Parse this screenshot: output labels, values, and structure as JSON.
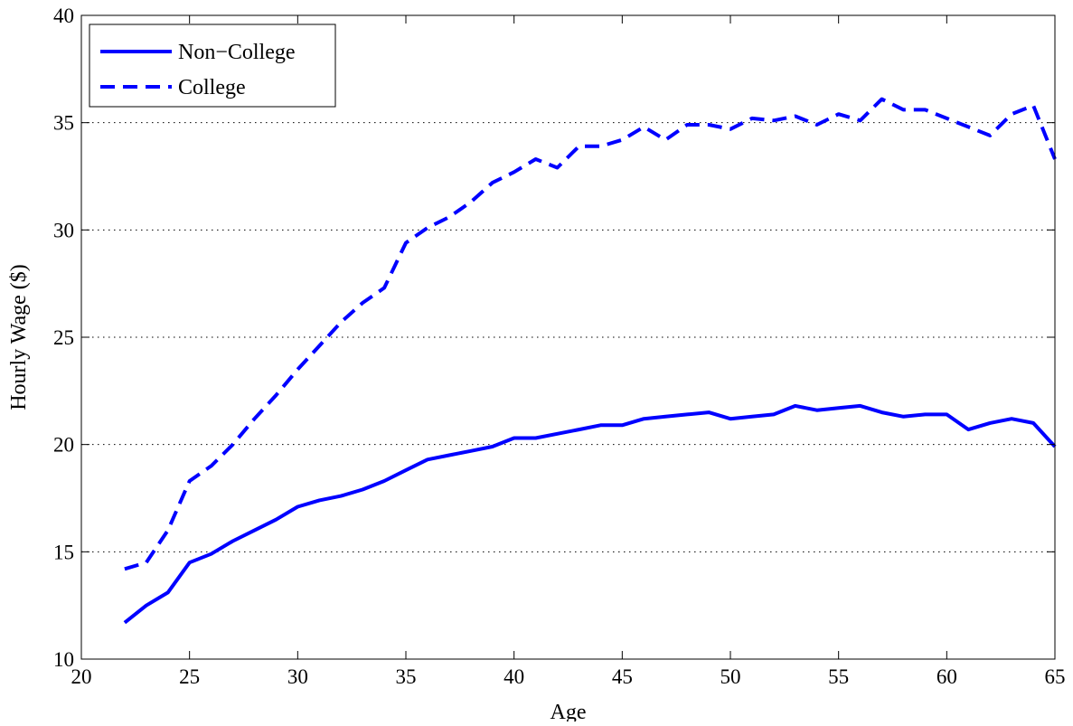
{
  "chart_data": {
    "type": "line",
    "xlabel": "Age",
    "ylabel": "Hourly Wage ($)",
    "xlim": [
      20,
      65
    ],
    "ylim": [
      10,
      40
    ],
    "xticks": [
      20,
      25,
      30,
      35,
      40,
      45,
      50,
      55,
      60,
      65
    ],
    "yticks": [
      10,
      15,
      20,
      25,
      30,
      35,
      40
    ],
    "grid": "horizontal dotted",
    "legend_position": "top-left",
    "x": [
      22,
      23,
      24,
      25,
      26,
      27,
      28,
      29,
      30,
      31,
      32,
      33,
      34,
      35,
      36,
      37,
      38,
      39,
      40,
      41,
      42,
      43,
      44,
      45,
      46,
      47,
      48,
      49,
      50,
      51,
      52,
      53,
      54,
      55,
      56,
      57,
      58,
      59,
      60,
      61,
      62,
      63,
      64,
      65
    ],
    "series": [
      {
        "name": "Non−College",
        "color": "#0000ff",
        "style": "solid",
        "values": [
          11.7,
          12.5,
          13.1,
          14.5,
          14.9,
          15.5,
          16.0,
          16.5,
          17.1,
          17.4,
          17.6,
          17.9,
          18.3,
          18.8,
          19.3,
          19.5,
          19.7,
          19.9,
          20.3,
          20.3,
          20.5,
          20.7,
          20.9,
          20.9,
          21.2,
          21.3,
          21.4,
          21.5,
          21.2,
          21.3,
          21.4,
          21.8,
          21.6,
          21.7,
          21.8,
          21.5,
          21.3,
          21.4,
          21.4,
          20.7,
          21.0,
          21.2,
          21.0,
          19.9
        ]
      },
      {
        "name": "College",
        "color": "#0000ff",
        "style": "dashed",
        "values": [
          14.2,
          14.5,
          16.0,
          18.3,
          19.0,
          20.0,
          21.2,
          22.3,
          23.5,
          24.6,
          25.7,
          26.6,
          27.3,
          29.4,
          30.1,
          30.6,
          31.3,
          32.2,
          32.7,
          33.3,
          32.9,
          33.9,
          33.9,
          34.2,
          34.8,
          34.2,
          34.9,
          34.9,
          34.7,
          35.2,
          35.1,
          35.3,
          34.9,
          35.4,
          35.1,
          36.1,
          35.6,
          35.6,
          35.2,
          34.8,
          34.4,
          35.4,
          35.8,
          33.3
        ]
      }
    ]
  }
}
